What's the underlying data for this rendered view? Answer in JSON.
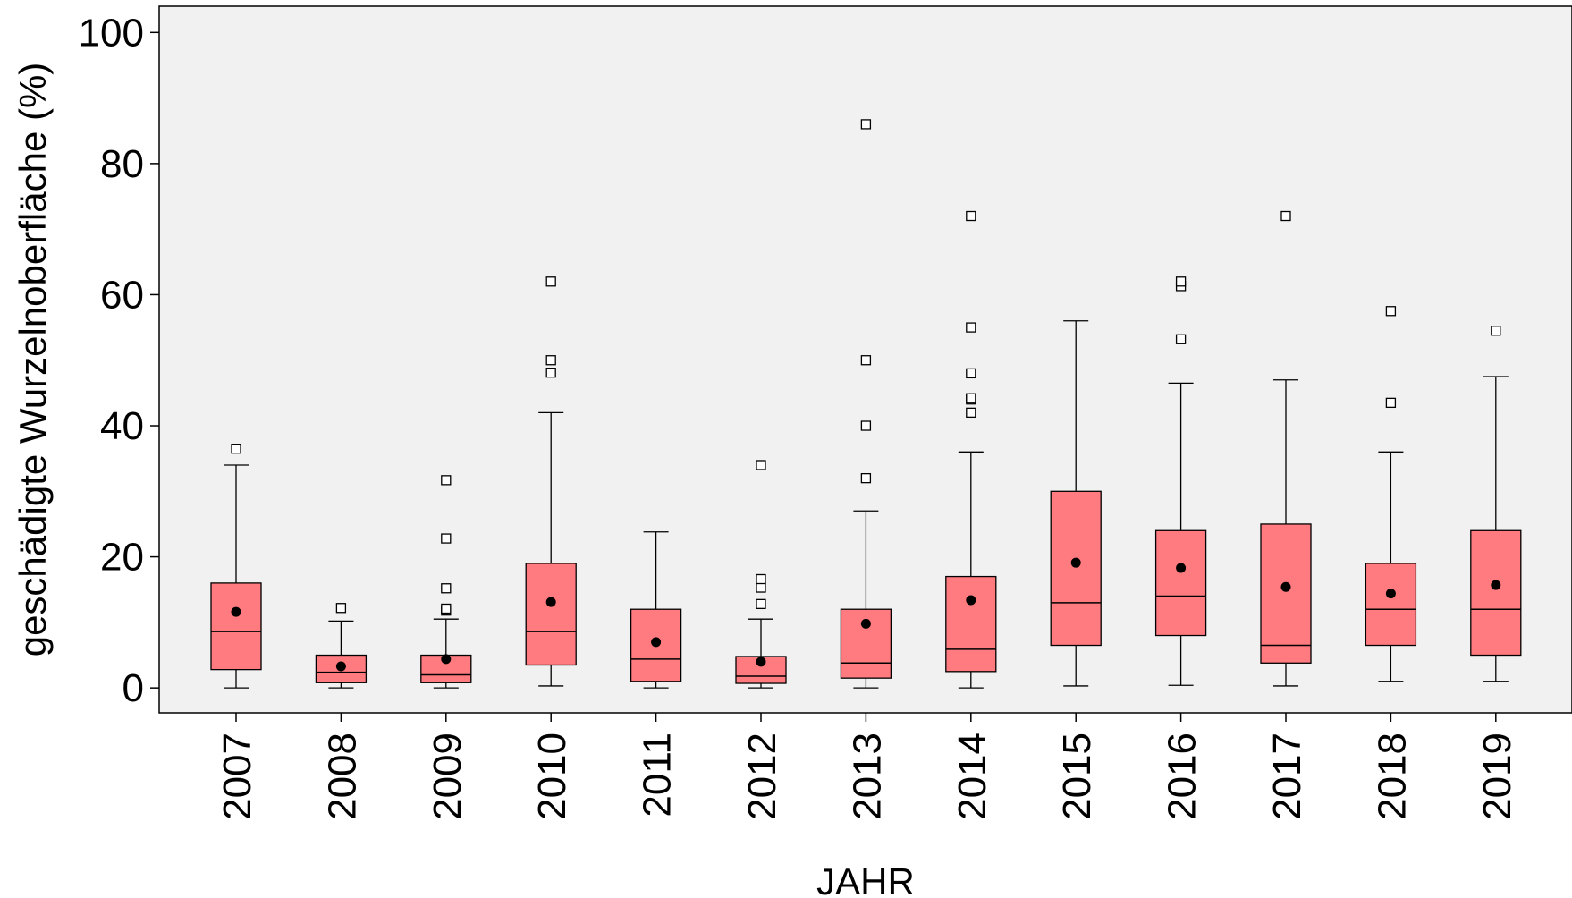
{
  "chart_data": {
    "type": "box",
    "title": "",
    "xlabel": "JAHR",
    "ylabel": "geschädigte Wurzelnoberfläche (%)",
    "ylim": [
      -3.8,
      104
    ],
    "yticks": [
      0,
      20,
      40,
      60,
      80,
      100
    ],
    "grid": false,
    "categories": [
      "2007",
      "2008",
      "2009",
      "2010",
      "2011",
      "2012",
      "2013",
      "2014",
      "2015",
      "2016",
      "2017",
      "2018",
      "2019"
    ],
    "boxes": [
      {
        "category": "2007",
        "whisker_low": 0,
        "q1": 2.8,
        "median": 8.6,
        "q3": 16,
        "whisker_high": 34,
        "mean": 11.6,
        "outliers": [
          36.5
        ]
      },
      {
        "category": "2008",
        "whisker_low": 0,
        "q1": 0.8,
        "median": 2.4,
        "q3": 5,
        "whisker_high": 10.2,
        "mean": 3.3,
        "outliers": [
          12.2
        ]
      },
      {
        "category": "2009",
        "whisker_low": 0,
        "q1": 0.8,
        "median": 2,
        "q3": 5,
        "whisker_high": 10.5,
        "mean": 4.4,
        "outliers": [
          11.8,
          12.1,
          15.2,
          22.8,
          31.7
        ]
      },
      {
        "category": "2010",
        "whisker_low": 0.3,
        "q1": 3.5,
        "median": 8.6,
        "q3": 19,
        "whisker_high": 42,
        "mean": 13.1,
        "outliers": [
          48.1,
          50,
          62
        ]
      },
      {
        "category": "2011",
        "whisker_low": 0,
        "q1": 1,
        "median": 4.4,
        "q3": 12,
        "whisker_high": 23.8,
        "mean": 7,
        "outliers": []
      },
      {
        "category": "2012",
        "whisker_low": 0,
        "q1": 0.7,
        "median": 1.8,
        "q3": 4.8,
        "whisker_high": 10.5,
        "mean": 4,
        "outliers": [
          12.8,
          15.3,
          16.6,
          34
        ]
      },
      {
        "category": "2013",
        "whisker_low": 0,
        "q1": 1.5,
        "median": 3.8,
        "q3": 12,
        "whisker_high": 27,
        "mean": 9.8,
        "outliers": [
          32,
          40,
          50,
          86
        ]
      },
      {
        "category": "2014",
        "whisker_low": 0,
        "q1": 2.5,
        "median": 5.9,
        "q3": 17,
        "whisker_high": 36,
        "mean": 13.4,
        "outliers": [
          42,
          44,
          44.2,
          48,
          55,
          72
        ]
      },
      {
        "category": "2015",
        "whisker_low": 0.3,
        "q1": 6.5,
        "median": 13,
        "q3": 30,
        "whisker_high": 56,
        "mean": 19.1,
        "outliers": []
      },
      {
        "category": "2016",
        "whisker_low": 0.4,
        "q1": 8,
        "median": 14,
        "q3": 24,
        "whisker_high": 46.5,
        "mean": 18.3,
        "outliers": [
          53.2,
          61.3,
          62
        ]
      },
      {
        "category": "2017",
        "whisker_low": 0.3,
        "q1": 3.8,
        "median": 6.5,
        "q3": 25,
        "whisker_high": 47,
        "mean": 15.4,
        "outliers": [
          72
        ]
      },
      {
        "category": "2018",
        "whisker_low": 1,
        "q1": 6.5,
        "median": 12,
        "q3": 19,
        "whisker_high": 36,
        "mean": 14.4,
        "outliers": [
          43.5,
          57.5
        ]
      },
      {
        "category": "2019",
        "whisker_low": 1,
        "q1": 5,
        "median": 12,
        "q3": 24,
        "whisker_high": 47.5,
        "mean": 15.7,
        "outliers": [
          54.5
        ]
      }
    ],
    "colors": {
      "box_fill": "#ff7b7f",
      "plot_background": "#f1f1f1",
      "line": "#000000"
    }
  }
}
